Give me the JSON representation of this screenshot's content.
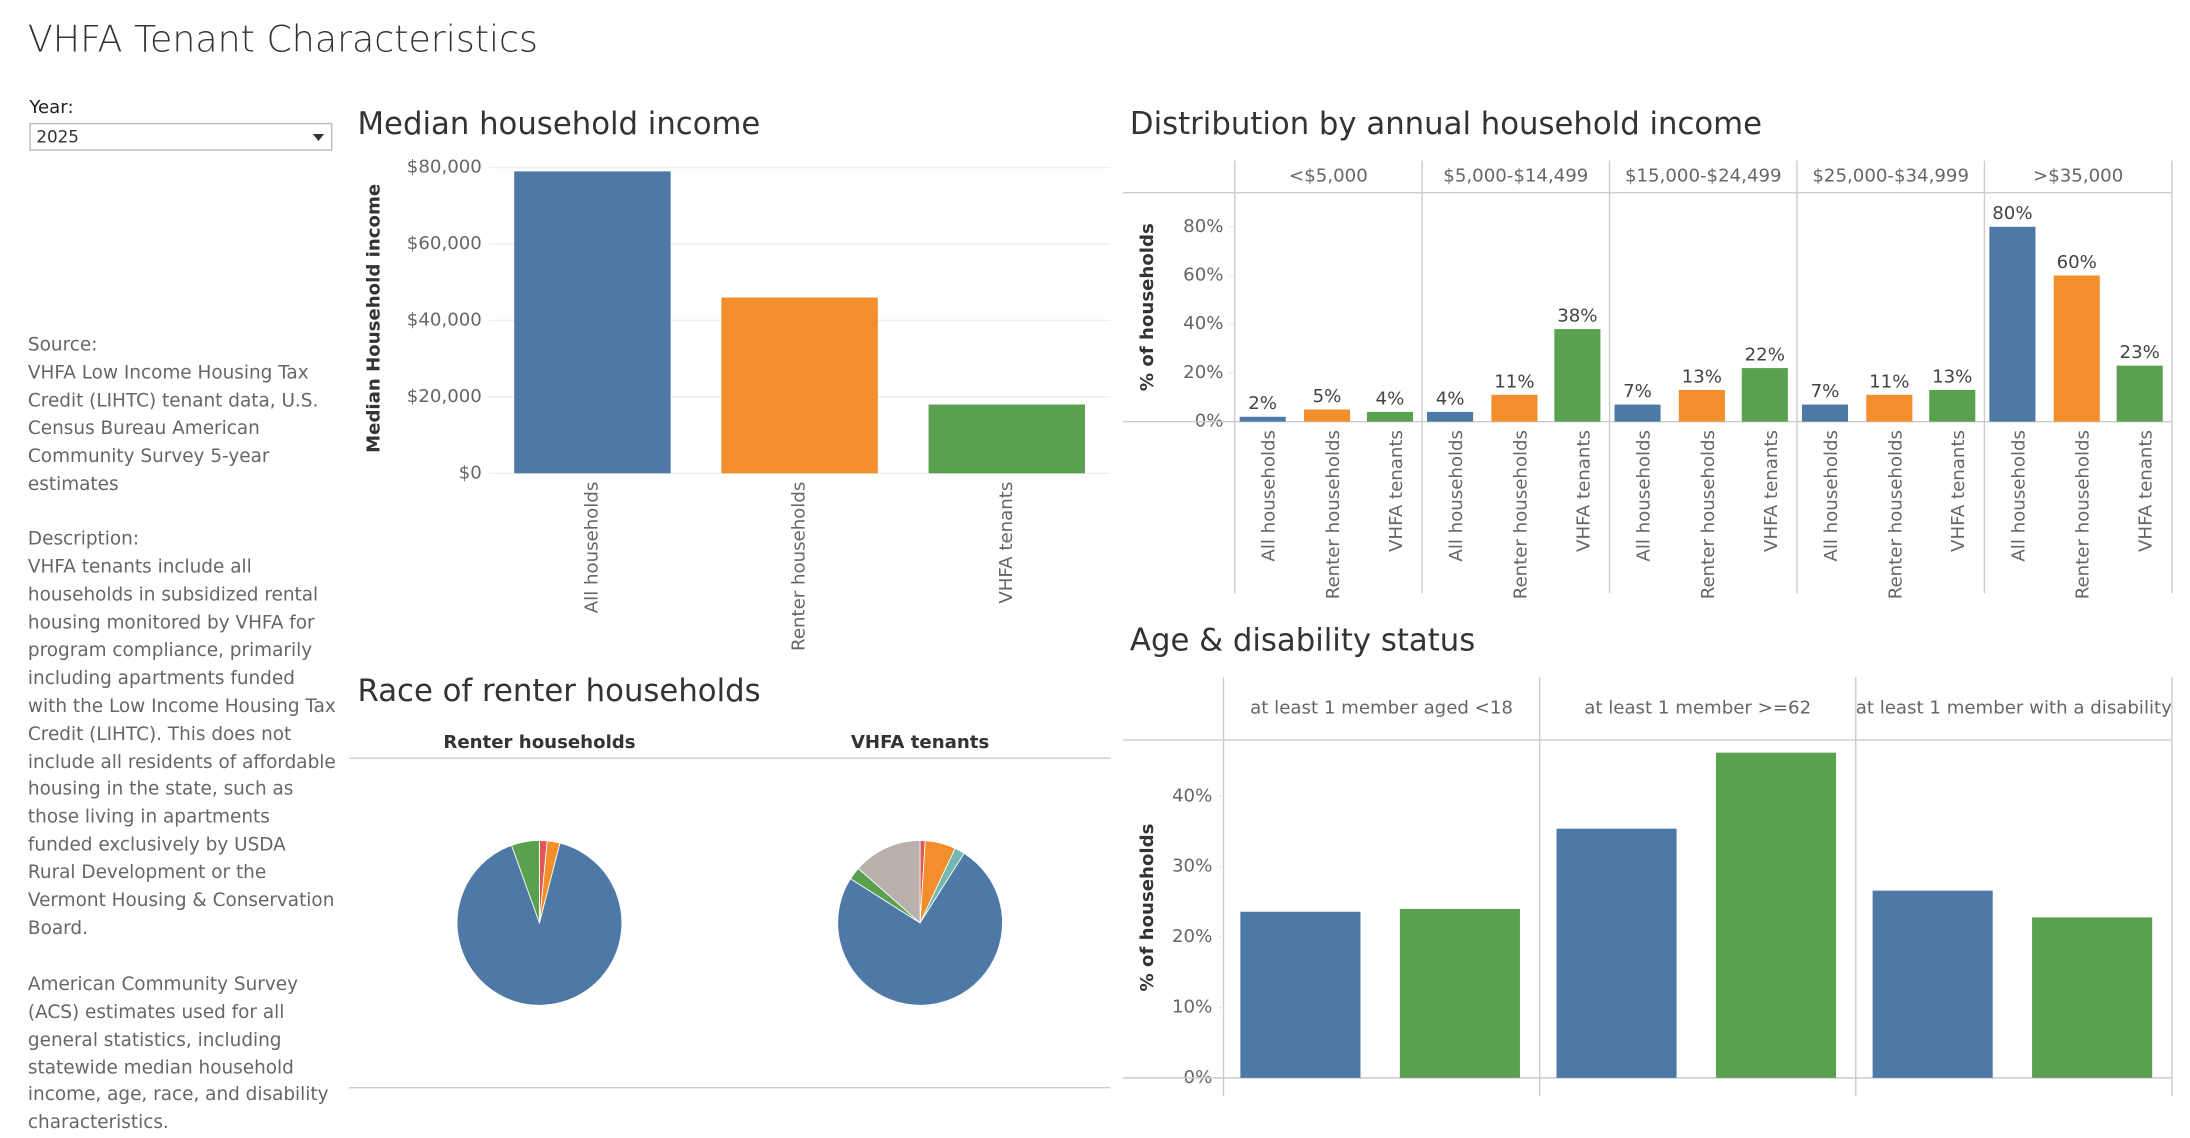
{
  "title": "VHFA Tenant Characteristics",
  "filter": {
    "label": "Year:",
    "value": "2025"
  },
  "notes": [
    {
      "heading": "Source:",
      "text": "VHFA Low Income Housing Tax Credit (LIHTC) tenant data, U.S. Census Bureau American Community Survey 5-year estimates"
    },
    {
      "heading": "Description:",
      "text": "VHFA tenants include all households in subsidized rental housing monitored by VHFA for program compliance, primarily including apartments funded with the Low Income Housing Tax Credit (LIHTC). This does not include all residents of affordable housing in the state, such as those living in apartments funded exclusively by USDA Rural Development or the Vermont Housing & Conservation Board."
    },
    {
      "text": "American Community Survey (ACS) estimates used for all general statistics, including statewide median household income, age, race, and disability characteristics."
    }
  ],
  "chart_data": [
    {
      "type": "bar",
      "title": "Median household income",
      "y_label": "Median Household income",
      "categories": [
        "All households",
        "Renter households",
        "VHFA tenants"
      ],
      "values": [
        79000,
        46000,
        18000
      ],
      "colors": [
        "#4e79a7",
        "#f28e2b",
        "#59a14f"
      ],
      "ylim": [
        0,
        80000
      ],
      "yticks": [
        {
          "value": 0,
          "label": "$0"
        },
        {
          "value": 20000,
          "label": "$20,000"
        },
        {
          "value": 40000,
          "label": "$40,000"
        },
        {
          "value": 60000,
          "label": "$60,000"
        },
        {
          "value": 80000,
          "label": "$80,000"
        }
      ],
      "grid": true
    },
    {
      "type": "grouped_bar",
      "title": "Distribution by annual household income",
      "y_label": "% of households",
      "groups": [
        "<$5,000",
        "$5,000-$14,499",
        "$15,000-$24,499",
        "$25,000-$34,999",
        ">$35,000"
      ],
      "series": [
        {
          "name": "All households",
          "color": "#4e79a7",
          "values": [
            2,
            4,
            7,
            7,
            80
          ],
          "value_labels": [
            "2%",
            "4%",
            "7%",
            "7%",
            "80%"
          ]
        },
        {
          "name": "Renter households",
          "color": "#f28e2b",
          "values": [
            5,
            11,
            13,
            11,
            60
          ],
          "value_labels": [
            "5%",
            "11%",
            "13%",
            "11%",
            "60%"
          ]
        },
        {
          "name": "VHFA tenants",
          "color": "#59a14f",
          "values": [
            4,
            38,
            22,
            13,
            23
          ],
          "value_labels": [
            "4%",
            "38%",
            "22%",
            "13%",
            "23%"
          ]
        }
      ],
      "ylim": [
        0,
        94
      ],
      "yticks": [
        {
          "value": 0,
          "label": "0%"
        },
        {
          "value": 20,
          "label": "20%"
        },
        {
          "value": 40,
          "label": "40%"
        },
        {
          "value": 60,
          "label": "60%"
        },
        {
          "value": 80,
          "label": "80%"
        }
      ]
    },
    {
      "type": "pie",
      "title": "Race of renter households",
      "panels": [
        {
          "title": "Renter households",
          "values": [
            1.5,
            2.5,
            90.5,
            5.5
          ],
          "colors": [
            "#e15759",
            "#f28e2b",
            "#4e79a7",
            "#59a14f"
          ]
        },
        {
          "title": "VHFA tenants",
          "values": [
            1,
            6,
            2,
            75,
            2.5,
            13.5
          ],
          "colors": [
            "#e15759",
            "#f28e2b",
            "#76b7b2",
            "#4e79a7",
            "#59a14f",
            "#bab0ac"
          ]
        }
      ]
    },
    {
      "type": "grouped_bar",
      "title": "Age & disability status",
      "y_label": "% of households",
      "groups": [
        "at least 1 member aged <18",
        "at least 1 member >=62",
        "at least 1 member with a disability"
      ],
      "series": [
        {
          "color": "#4e79a7",
          "values": [
            23.6,
            35.4,
            26.6
          ]
        },
        {
          "color": "#59a14f",
          "values": [
            24,
            46.2,
            22.8
          ]
        }
      ],
      "ylim": [
        0,
        48
      ],
      "yticks": [
        {
          "value": 0,
          "label": "0%"
        },
        {
          "value": 10,
          "label": "10%"
        },
        {
          "value": 20,
          "label": "20%"
        },
        {
          "value": 30,
          "label": "30%"
        },
        {
          "value": 40,
          "label": "40%"
        }
      ]
    }
  ]
}
